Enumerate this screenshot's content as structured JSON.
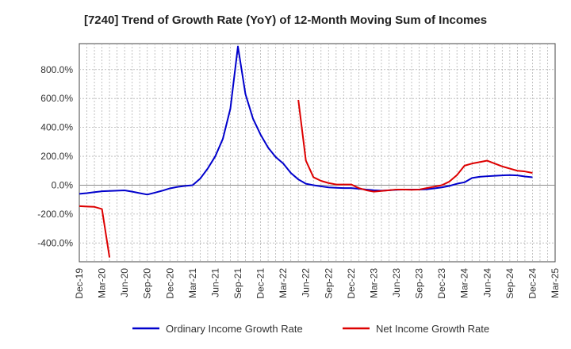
{
  "chart_data": {
    "type": "line",
    "title": "[7240]  Trend of Growth Rate (YoY) of 12-Month Moving Sum of Incomes",
    "xlabel": "",
    "ylabel": "",
    "x_tick_labels": [
      "Dec-19",
      "Mar-20",
      "Jun-20",
      "Sep-20",
      "Dec-20",
      "Mar-21",
      "Jun-21",
      "Sep-21",
      "Dec-21",
      "Mar-22",
      "Jun-22",
      "Sep-22",
      "Dec-22",
      "Mar-23",
      "Jun-23",
      "Sep-23",
      "Dec-23",
      "Mar-24",
      "Jun-24",
      "Sep-24",
      "Dec-24",
      "Mar-25"
    ],
    "y_ticks": [
      -400,
      -200,
      0,
      200,
      400,
      600,
      800
    ],
    "y_tick_labels": [
      "-400.0%",
      "-200.0%",
      "0.0%",
      "200.0%",
      "400.0%",
      "600.0%",
      "800.0%"
    ],
    "ylim": [
      -530,
      980
    ],
    "y_unit": "%",
    "grid": true,
    "legend_position": "bottom",
    "series": [
      {
        "name": "Ordinary Income Growth Rate",
        "color": "#0000cc",
        "x": [
          "Dec-19",
          "Jan-20",
          "Feb-20",
          "Mar-20",
          "Apr-20",
          "May-20",
          "Jun-20",
          "Jul-20",
          "Aug-20",
          "Sep-20",
          "Oct-20",
          "Nov-20",
          "Dec-20",
          "Jan-21",
          "Feb-21",
          "Mar-21",
          "Apr-21",
          "May-21",
          "Jun-21",
          "Jul-21",
          "Aug-21",
          "Sep-21",
          "Oct-21",
          "Nov-21",
          "Dec-21",
          "Jan-22",
          "Feb-22",
          "Mar-22",
          "Apr-22",
          "May-22",
          "Jun-22",
          "Jul-22",
          "Aug-22",
          "Sep-22",
          "Oct-22",
          "Nov-22",
          "Dec-22",
          "Jan-23",
          "Feb-23",
          "Mar-23",
          "Apr-23",
          "May-23",
          "Jun-23",
          "Jul-23",
          "Aug-23",
          "Sep-23",
          "Oct-23",
          "Nov-23",
          "Dec-23",
          "Jan-24",
          "Feb-24",
          "Mar-24",
          "Apr-24",
          "May-24",
          "Jun-24",
          "Jul-24",
          "Aug-24",
          "Sep-24",
          "Oct-24",
          "Nov-24",
          "Dec-24"
        ],
        "values": [
          -60,
          -55,
          -48,
          -42,
          -40,
          -38,
          -36,
          -45,
          -55,
          -65,
          -52,
          -38,
          -22,
          -12,
          -5,
          0,
          45,
          115,
          200,
          320,
          530,
          960,
          630,
          460,
          350,
          260,
          195,
          150,
          85,
          40,
          10,
          0,
          -8,
          -15,
          -18,
          -20,
          -20,
          -25,
          -30,
          -35,
          -38,
          -35,
          -32,
          -30,
          -30,
          -30,
          -28,
          -22,
          -15,
          -5,
          10,
          20,
          50,
          58,
          62,
          65,
          68,
          70,
          68,
          60,
          55
        ]
      },
      {
        "name": "Net Income Growth Rate",
        "color": "#dd0000",
        "segments": [
          {
            "x": [
              "Dec-19",
              "Jan-20",
              "Feb-20",
              "Mar-20",
              "Apr-20"
            ],
            "values": [
              -145,
              -148,
              -150,
              -165,
              -500
            ]
          },
          {
            "x": [
              "May-22",
              "Jun-22",
              "Jul-22",
              "Aug-22",
              "Sep-22",
              "Oct-22",
              "Nov-22",
              "Dec-22",
              "Jan-23",
              "Feb-23",
              "Mar-23",
              "Apr-23",
              "May-23",
              "Jun-23",
              "Jul-23",
              "Aug-23",
              "Sep-23",
              "Oct-23",
              "Nov-23",
              "Dec-23",
              "Jan-24",
              "Feb-24",
              "Mar-24",
              "Apr-24",
              "May-24",
              "Jun-24",
              "Jul-24",
              "Aug-24",
              "Sep-24",
              "Oct-24",
              "Nov-24",
              "Dec-24"
            ],
            "values": [
              590,
              170,
              55,
              30,
              15,
              5,
              5,
              5,
              -20,
              -35,
              -45,
              -40,
              -35,
              -30,
              -30,
              -32,
              -30,
              -20,
              -10,
              0,
              25,
              70,
              135,
              150,
              160,
              170,
              150,
              130,
              115,
              100,
              95,
              85
            ]
          }
        ]
      }
    ]
  }
}
